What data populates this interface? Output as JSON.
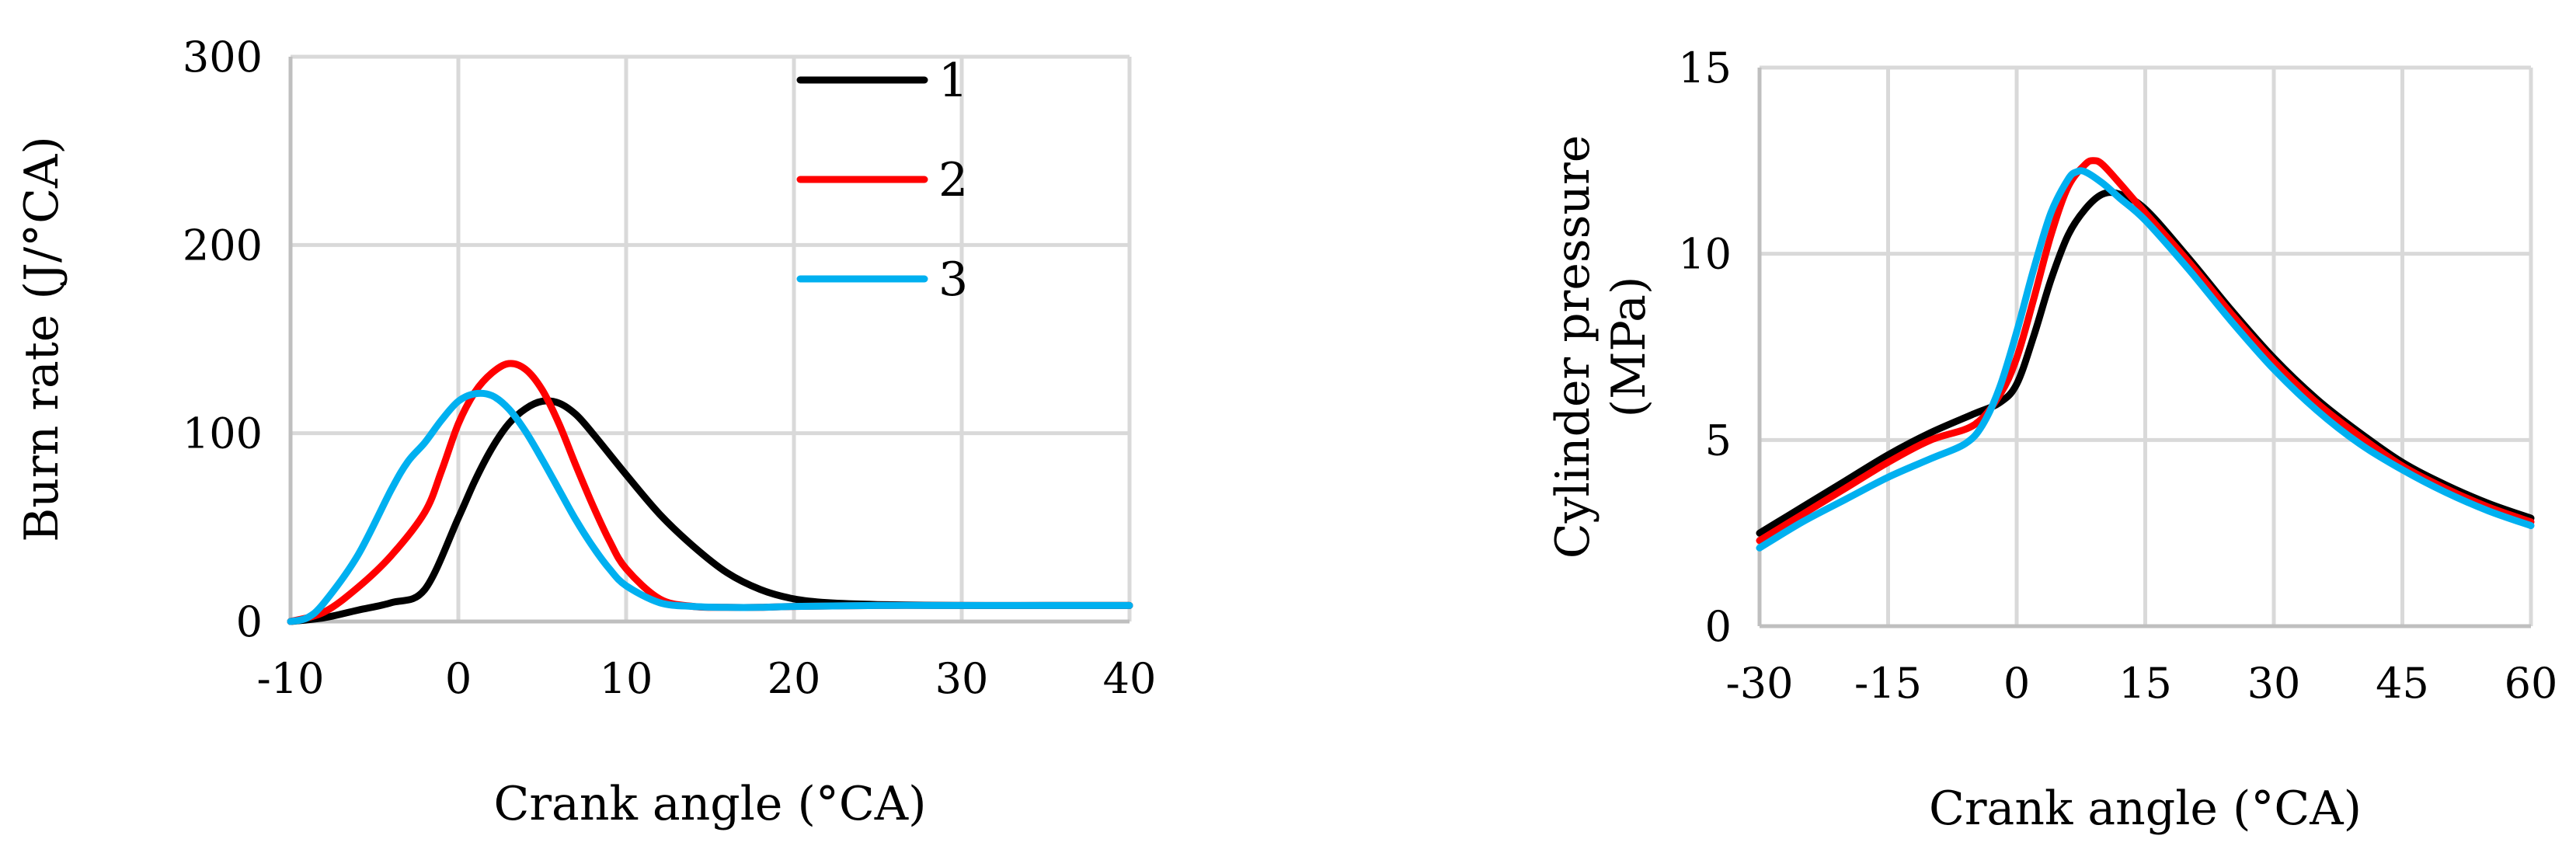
{
  "chart_data": [
    {
      "type": "line",
      "title": "",
      "xlabel": "Crank angle (°CA)",
      "ylabel": "Burn rate (J/°CA)",
      "xlim": [
        -10,
        40
      ],
      "ylim": [
        0,
        300
      ],
      "xticks": [
        -10,
        0,
        10,
        20,
        30,
        40
      ],
      "yticks": [
        0,
        100,
        200,
        300
      ],
      "grid": true,
      "legend": "top-center",
      "series": [
        {
          "name": "1",
          "color": "#000000",
          "x": [
            -10,
            -8,
            -6,
            -4,
            -2,
            0,
            1,
            2,
            3,
            4,
            5,
            6,
            7,
            8,
            10,
            12,
            14,
            16,
            18,
            20,
            22,
            25,
            30,
            35,
            40
          ],
          "y": [
            0,
            2,
            6,
            10,
            17,
            55,
            75,
            92,
            105,
            113,
            117,
            116,
            110,
            100,
            78,
            57,
            40,
            26,
            17,
            12,
            10,
            9,
            8.5,
            8.5,
            8.5
          ]
        },
        {
          "name": "2",
          "color": "#ff0000",
          "x": [
            -10,
            -8,
            -6,
            -4,
            -2,
            -1,
            0,
            1,
            2,
            3,
            4,
            5,
            6,
            7,
            8,
            9,
            10,
            12,
            14,
            16,
            18,
            20,
            25,
            30,
            35,
            40
          ],
          "y": [
            0,
            5,
            18,
            35,
            58,
            80,
            105,
            122,
            132,
            137,
            134,
            123,
            105,
            83,
            62,
            43,
            28,
            12,
            8,
            7.5,
            7.5,
            8,
            8.5,
            8.5,
            8.5,
            8.5
          ]
        },
        {
          "name": "3",
          "color": "#00b0f0",
          "x": [
            -10,
            -9,
            -8,
            -6,
            -4,
            -3,
            -2,
            -1,
            0,
            1,
            2,
            3,
            4,
            5,
            6,
            7,
            8,
            9,
            10,
            12,
            14,
            16,
            18,
            20,
            25,
            30,
            35,
            40
          ],
          "y": [
            0,
            2,
            10,
            35,
            70,
            85,
            95,
            107,
            117,
            121,
            120,
            113,
            101,
            86,
            70,
            54,
            40,
            28,
            19,
            10,
            8,
            7.5,
            7.5,
            8,
            8.5,
            8.5,
            8.5,
            8.5
          ]
        }
      ]
    },
    {
      "type": "line",
      "title": "",
      "xlabel": "Crank angle (°CA)",
      "ylabel": "Cylinder pressure (MPa)",
      "ylabel_lines": [
        "Cylinder pressure",
        "(MPa)"
      ],
      "xlim": [
        -30,
        60
      ],
      "ylim": [
        0,
        15
      ],
      "xticks": [
        -30,
        -15,
        0,
        15,
        30,
        45,
        60
      ],
      "yticks": [
        0,
        5,
        10,
        15
      ],
      "grid": true,
      "legend": "none",
      "series": [
        {
          "name": "1",
          "color": "#000000",
          "x": [
            -30,
            -25,
            -20,
            -15,
            -10,
            -5,
            -2,
            0,
            2,
            4,
            6,
            8,
            10,
            12,
            15,
            20,
            25,
            30,
            35,
            40,
            45,
            50,
            55,
            60
          ],
          "y": [
            2.5,
            3.2,
            3.9,
            4.6,
            5.2,
            5.7,
            6.0,
            6.5,
            7.8,
            9.3,
            10.5,
            11.2,
            11.6,
            11.6,
            11.2,
            9.9,
            8.5,
            7.2,
            6.1,
            5.2,
            4.4,
            3.8,
            3.3,
            2.9
          ]
        },
        {
          "name": "2",
          "color": "#ff0000",
          "x": [
            -30,
            -25,
            -20,
            -15,
            -10,
            -5,
            -2,
            0,
            2,
            4,
            6,
            8,
            9,
            10,
            12,
            15,
            20,
            25,
            30,
            35,
            40,
            45,
            50,
            55,
            60
          ],
          "y": [
            2.3,
            3.0,
            3.7,
            4.4,
            5.0,
            5.4,
            6.2,
            7.2,
            8.8,
            10.5,
            11.8,
            12.4,
            12.5,
            12.4,
            11.9,
            11.1,
            9.8,
            8.4,
            7.1,
            6.0,
            5.1,
            4.3,
            3.7,
            3.2,
            2.8
          ]
        },
        {
          "name": "3",
          "color": "#00b0f0",
          "x": [
            -30,
            -25,
            -20,
            -15,
            -10,
            -6,
            -4,
            -2,
            0,
            2,
            4,
            6,
            7,
            8,
            10,
            12,
            15,
            20,
            25,
            30,
            35,
            40,
            45,
            50,
            55,
            60
          ],
          "y": [
            2.1,
            2.8,
            3.4,
            4.0,
            4.5,
            4.9,
            5.4,
            6.4,
            7.9,
            9.6,
            11.1,
            12.0,
            12.2,
            12.2,
            11.9,
            11.5,
            10.9,
            9.6,
            8.2,
            6.9,
            5.8,
            4.9,
            4.2,
            3.6,
            3.1,
            2.7
          ]
        }
      ]
    }
  ]
}
